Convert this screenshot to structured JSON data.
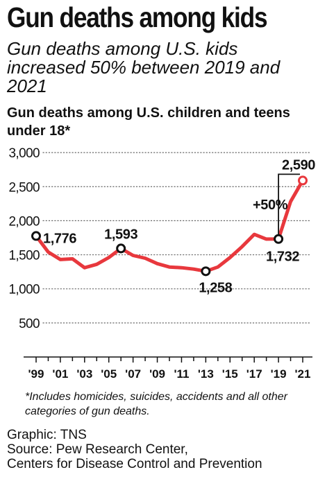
{
  "header": {
    "title": "Gun deaths among kids",
    "subtitle": "Gun deaths among U.S. kids increased 50% between 2019 and 2021",
    "chart_title": "Gun deaths among U.S. children and teens under 18*"
  },
  "footer": {
    "footnote": "*Includes homicides, suicides, accidents and all other categories of gun deaths.",
    "graphic": "Graphic: TNS",
    "source_line1": "Source: Pew Research Center,",
    "source_line2": "Centers for Disease Control and Prevention"
  },
  "chart_data": {
    "type": "line",
    "title": "Gun deaths among U.S. children and teens under 18*",
    "xlabel": "",
    "ylabel": "",
    "ylim": [
      0,
      3000
    ],
    "y_ticks": [
      500,
      1000,
      1500,
      2000,
      2500,
      3000
    ],
    "y_tick_labels": [
      "500",
      "1,000",
      "1,500",
      "2,000",
      "2,500",
      "3,000"
    ],
    "x_tick_labels": [
      "'99",
      "'01",
      "'03",
      "'05",
      "'07",
      "'09",
      "'11",
      "'13",
      "'15",
      "'17",
      "'19",
      "'21"
    ],
    "x_tick_years": [
      1999,
      2001,
      2003,
      2005,
      2007,
      2009,
      2011,
      2013,
      2015,
      2017,
      2019,
      2021
    ],
    "x": [
      1999,
      2000,
      2001,
      2002,
      2003,
      2004,
      2005,
      2006,
      2007,
      2008,
      2009,
      2010,
      2011,
      2012,
      2013,
      2014,
      2015,
      2016,
      2017,
      2018,
      2019,
      2020,
      2021
    ],
    "series": [
      {
        "values": [
          1776,
          1540,
          1430,
          1440,
          1310,
          1360,
          1460,
          1593,
          1490,
          1450,
          1370,
          1320,
          1310,
          1290,
          1258,
          1320,
          1460,
          1620,
          1800,
          1730,
          1732,
          2280,
          2590
        ],
        "color": "#e8383d"
      }
    ],
    "point_labels": [
      {
        "x": 1999,
        "value": 1776,
        "label": "1,776"
      },
      {
        "x": 2006,
        "value": 1593,
        "label": "1,593"
      },
      {
        "x": 2013,
        "value": 1258,
        "label": "1,258"
      },
      {
        "x": 2019,
        "value": 1732,
        "label": "1,732"
      },
      {
        "x": 2021,
        "value": 2590,
        "label": "2,590"
      }
    ],
    "annotation": "+50%",
    "grid": true,
    "grid_style": "dotted horizontal"
  }
}
